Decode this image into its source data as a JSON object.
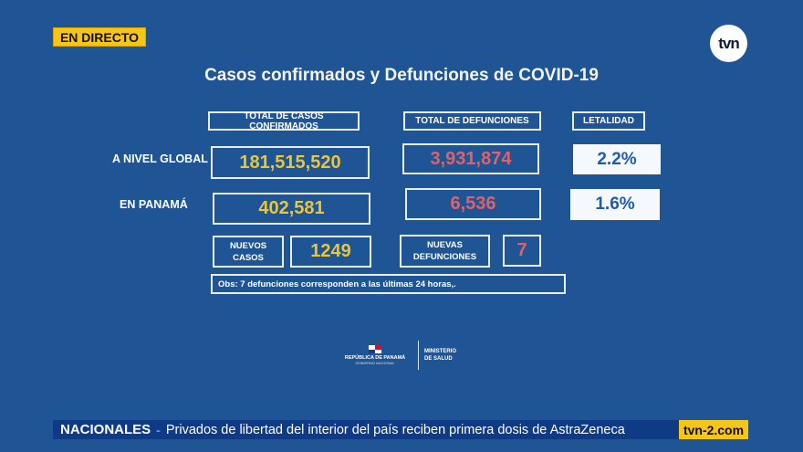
{
  "badge": {
    "live": "EN DIRECTO"
  },
  "channel_logo": "tvn",
  "title": "Casos confirmados y Defunciones de COVID-19",
  "headers": {
    "cases": "TOTAL DE CASOS CONFIRMADOS",
    "deaths": "TOTAL DE DEFUNCIONES",
    "lethality": "LETALIDAD"
  },
  "rows": [
    {
      "label": "A NIVEL GLOBAL",
      "cases": "181,515,520",
      "deaths": "3,931,874",
      "lethality": "2.2%"
    },
    {
      "label": "EN PANAMÁ",
      "cases": "402,581",
      "deaths": "6,536",
      "lethality": "1.6%"
    }
  ],
  "new": {
    "cases_label": "NUEVOS CASOS",
    "cases": "1249",
    "deaths_label": "NUEVAS DEFUNCIONES",
    "deaths": "7"
  },
  "obs": "Obs:  7 defunciones corresponden a las últimas 24 horas,.",
  "ministry": {
    "republic": "REPÚBLICA DE PANAMÁ",
    "gov": "GOBIERNO NACIONAL",
    "ministry": "MINISTERIO DE SALUD"
  },
  "ticker": {
    "section": "NACIONALES",
    "headline": "Privados de libertad del interior del país reciben primera dosis de AstraZeneca",
    "site": "tvn-2.com"
  },
  "colors": {
    "background": "#1f5594",
    "cases": "#e8c53a",
    "deaths": "#e0616a",
    "accent": "#f5c518"
  }
}
